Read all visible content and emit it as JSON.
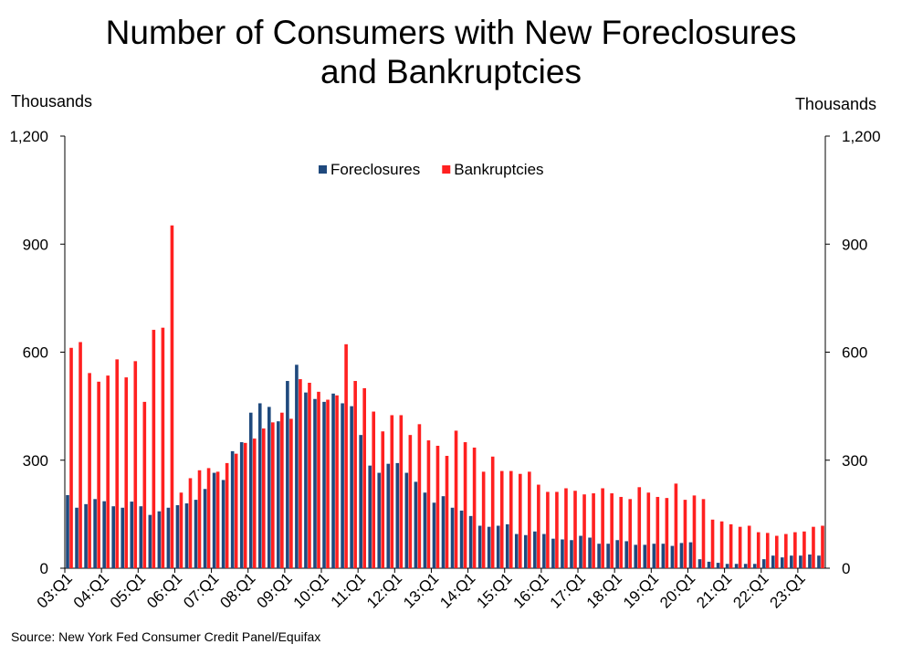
{
  "chart_data": {
    "type": "bar",
    "title": "Number of Consumers with New Foreclosures and Bankruptcies",
    "title_lines": [
      "Number of Consumers with New Foreclosures",
      "and Bankruptcies"
    ],
    "ylabel_left": "Thousands",
    "ylabel_right": "Thousands",
    "ylim": [
      0,
      1200
    ],
    "yticks": [
      0,
      300,
      600,
      900,
      1200
    ],
    "ytick_labels": [
      "0",
      "300",
      "600",
      "900",
      "1,200"
    ],
    "grid": false,
    "legend_position": "top-center",
    "start_quarter": "2003Q1",
    "x_tick_labels": [
      "03:Q1",
      "04:Q1",
      "05:Q1",
      "06:Q1",
      "07:Q1",
      "08:Q1",
      "09:Q1",
      "10:Q1",
      "11:Q1",
      "12:Q1",
      "13:Q1",
      "14:Q1",
      "15:Q1",
      "16:Q1",
      "17:Q1",
      "18:Q1",
      "19:Q1",
      "20:Q1",
      "21:Q1",
      "22:Q1",
      "23:Q1"
    ],
    "series": [
      {
        "name": "Foreclosures",
        "color": "#1f497d",
        "values": [
          203,
          168,
          178,
          192,
          186,
          172,
          168,
          185,
          172,
          148,
          158,
          168,
          175,
          180,
          190,
          220,
          265,
          245,
          325,
          350,
          432,
          458,
          448,
          408,
          520,
          565,
          488,
          470,
          462,
          485,
          458,
          450,
          370,
          285,
          265,
          290,
          292,
          265,
          240,
          210,
          182,
          200,
          168,
          160,
          145,
          118,
          115,
          118,
          122,
          95,
          92,
          102,
          95,
          82,
          80,
          78,
          90,
          85,
          68,
          68,
          78,
          75,
          65,
          65,
          68,
          68,
          62,
          70,
          72,
          25,
          18,
          15,
          12,
          12,
          12,
          12,
          25,
          35,
          30,
          35,
          35,
          38,
          35
        ]
      },
      {
        "name": "Bankruptcies",
        "color": "#ff2020",
        "values": [
          612,
          628,
          542,
          518,
          535,
          580,
          530,
          575,
          462,
          662,
          668,
          952,
          210,
          250,
          272,
          278,
          268,
          292,
          318,
          348,
          360,
          388,
          405,
          432,
          415,
          525,
          515,
          490,
          468,
          480,
          622,
          520,
          500,
          435,
          380,
          425,
          425,
          370,
          400,
          355,
          340,
          312,
          382,
          350,
          335,
          268,
          310,
          270,
          270,
          262,
          268,
          232,
          212,
          212,
          222,
          215,
          205,
          208,
          222,
          208,
          198,
          192,
          225,
          210,
          198,
          195,
          235,
          190,
          202,
          192,
          135,
          130,
          122,
          115,
          118,
          100,
          98,
          90,
          95,
          100,
          102,
          115,
          118
        ]
      }
    ],
    "source": "Source: New York Fed Consumer Credit Panel/Equifax"
  }
}
